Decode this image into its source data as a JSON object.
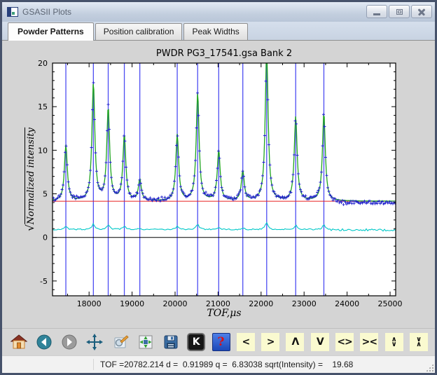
{
  "window": {
    "title": "GSASII Plots"
  },
  "tabs": [
    {
      "label": "Powder Patterns",
      "active": true
    },
    {
      "label": "Position calibration",
      "active": false
    },
    {
      "label": "Peak Widths",
      "active": false
    }
  ],
  "toolbar": {
    "icons": [
      "home",
      "back",
      "forward",
      "pan",
      "zoom-to-rect",
      "configure-subplots",
      "save-figure",
      "key-commands",
      "help"
    ],
    "key_label": "K",
    "help_label": "?",
    "nav": [
      {
        "name": "shift-left",
        "label": "<"
      },
      {
        "name": "shift-right",
        "label": ">"
      },
      {
        "name": "shift-up",
        "label": "Λ"
      },
      {
        "name": "shift-down",
        "label": "V"
      },
      {
        "name": "expand-x",
        "label": "<>"
      },
      {
        "name": "contract-x",
        "label": "><"
      },
      {
        "name": "expand-y",
        "label_top": "∧",
        "label_bottom": "∨"
      },
      {
        "name": "contract-y",
        "label_top": "∨",
        "label_bottom": "∧"
      }
    ]
  },
  "statusbar": {
    "text": "TOF =20782.214 d =  0.91989 q =  6.83038 sqrt(Intensity) =    19.68"
  },
  "chart_data": {
    "type": "line",
    "title": "PWDR PG3_17541.gsa Bank 2",
    "xlabel": "TOF,μs",
    "ylabel": "√Normalized intensity",
    "ylabel_radical": "√",
    "ylabel_text": "Normalized intensity",
    "xlim": [
      17150,
      25130
    ],
    "ylim": [
      -6.7,
      20
    ],
    "xticks": [
      18000,
      19000,
      20000,
      21000,
      22000,
      23000,
      24000,
      25000
    ],
    "yticks": [
      -5,
      0,
      5,
      10,
      15,
      20
    ],
    "x_minor_step": 500,
    "y_minor_step": 1,
    "grid": false,
    "legend": false,
    "background_level": 4.15,
    "difference_level": 0.9,
    "observed_baseline": {
      "level": 4.2,
      "level_after": 4.0,
      "break_tof": 23550
    },
    "peak_fwhm_us": 80,
    "reflections": [
      17460,
      18100,
      18445,
      18820,
      19180,
      20050,
      20525,
      21015,
      21575,
      22130,
      22805,
      23460
    ],
    "peaks": [
      {
        "tof": 17460,
        "height": 10.6
      },
      {
        "tof": 18100,
        "height": 17.7
      },
      {
        "tof": 18445,
        "height": 14.8
      },
      {
        "tof": 18820,
        "height": 11.7
      },
      {
        "tof": 19180,
        "height": 6.6
      },
      {
        "tof": 20050,
        "height": 11.8
      },
      {
        "tof": 20525,
        "height": 16.6
      },
      {
        "tof": 21015,
        "height": 10.0
      },
      {
        "tof": 21575,
        "height": 7.6
      },
      {
        "tof": 22130,
        "height": 21.5
      },
      {
        "tof": 22805,
        "height": 13.9
      },
      {
        "tof": 23460,
        "height": 14.3
      }
    ],
    "series": [
      {
        "name": "observed",
        "style": "plus-markers",
        "color": "#2020cc"
      },
      {
        "name": "calculated",
        "style": "line",
        "color": "#1fa41f"
      },
      {
        "name": "background",
        "style": "line",
        "color": "#e82222"
      },
      {
        "name": "difference",
        "style": "line",
        "color": "#00c8c8"
      },
      {
        "name": "reflection-positions",
        "style": "vlines",
        "color": "#4d4df2"
      }
    ],
    "zero_line_color": "#000000"
  }
}
